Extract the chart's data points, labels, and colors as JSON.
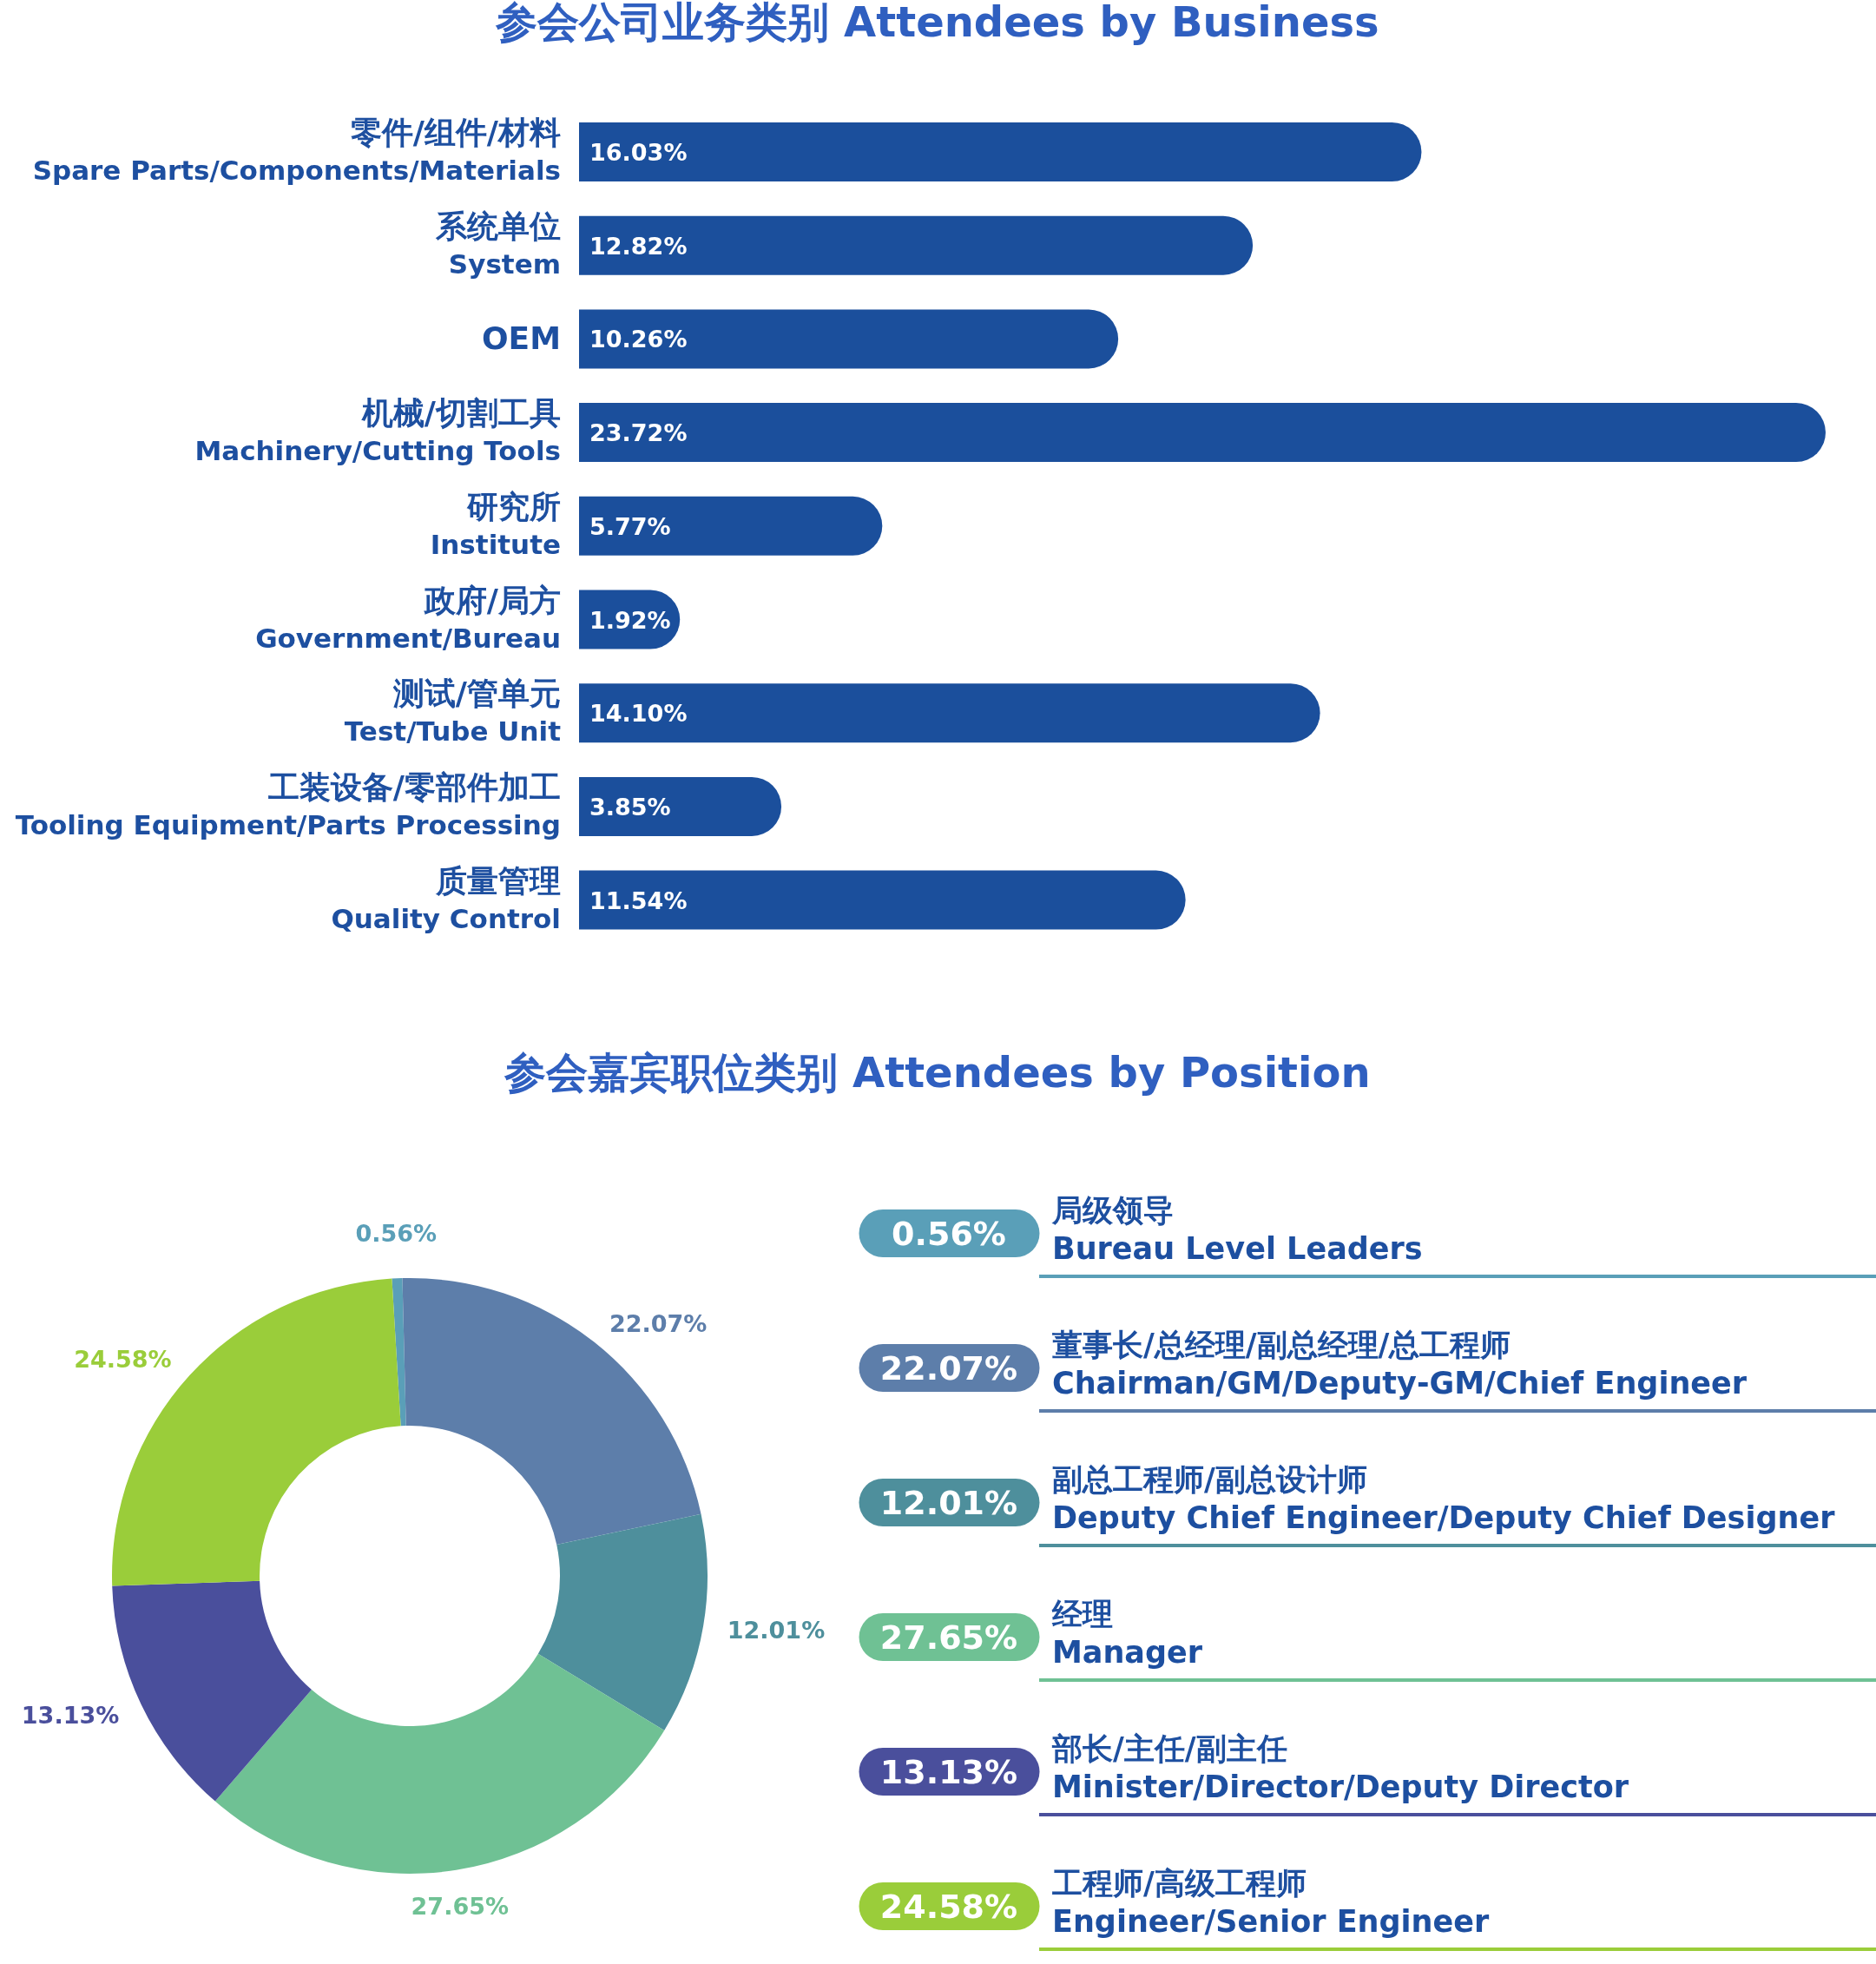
{
  "chart_data": [
    {
      "type": "bar",
      "orientation": "horizontal",
      "title": "参会公司业务类别   Attendees by Business",
      "color": "#1b4f9c",
      "categories": [
        "零件/组件/材料\nSpare Parts/Components/Materials",
        "系统单位\nSystem",
        "OEM",
        "机械/切割工具\nMachinery/Cutting Tools",
        "研究所\nInstitute",
        "政府/局方\nGovernment/Bureau",
        "测试/管单元\nTest/Tube Unit",
        "工装设备/零部件加工\nTooling Equipment/Parts Processing",
        "质量管理\nQuality Control"
      ],
      "values": [
        16.03,
        12.82,
        10.26,
        23.72,
        5.77,
        1.92,
        14.1,
        3.85,
        11.54
      ],
      "value_labels": [
        "16.03%",
        "12.82%",
        "10.26%",
        "23.72%",
        "5.77%",
        "1.92%",
        "14.10%",
        "3.85%",
        "11.54%"
      ]
    },
    {
      "type": "donut",
      "title": "参会嘉宾职位类别   Attendees by Position",
      "legend": "right",
      "categories": [
        "局级领导\nBureau Level Leaders",
        "董事长/总经理/副总经理/总工程师\nChairman/GM/Deputy-GM/Chief Engineer",
        "副总工程师/副总设计师\nDeputy Chief Engineer/Deputy Chief Designer",
        "经理\nManager",
        "部长/主任/副主任\nMinister/Director/Deputy Director",
        "工程师/高级工程师\nEngineer/Senior Engineer"
      ],
      "values": [
        0.56,
        22.07,
        12.01,
        27.65,
        13.13,
        24.58
      ],
      "colors": [
        "#5a9fb8",
        "#5d7eaa",
        "#4e8f9c",
        "#6fc194",
        "#4a4f9c",
        "#9acd3a"
      ],
      "value_labels": [
        "0.56%",
        "22.07%",
        "12.01%",
        "27.65%",
        "13.13%",
        "24.58%"
      ]
    }
  ]
}
